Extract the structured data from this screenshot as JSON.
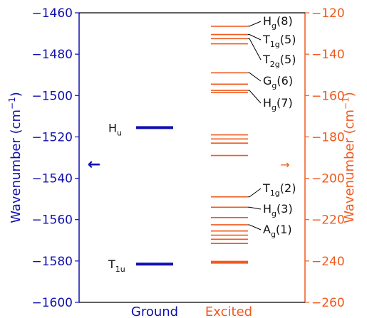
{
  "chart_data": {
    "type": "level-diagram",
    "xlabels": [
      "Ground",
      "Excited"
    ],
    "left_axis": {
      "label_main": "Wavenumber (cm",
      "label_sup": "−1",
      "label_close": ")",
      "ylim": [
        -1600,
        -1460
      ],
      "ticks": [
        -1460,
        -1480,
        -1500,
        -1520,
        -1540,
        -1560,
        -1580,
        -1600
      ],
      "color": "#1010b0"
    },
    "right_axis": {
      "label_main": "Wavenumber (cm",
      "label_sup": "−1",
      "label_close": ")",
      "ylim": [
        -260,
        -120
      ],
      "ticks": [
        -120,
        -140,
        -160,
        -180,
        -200,
        -220,
        -240,
        -260
      ],
      "color": "#f05a1e"
    },
    "ground_levels": [
      {
        "value": -1515.5,
        "label": "H",
        "sub": "u"
      },
      {
        "value": -1581.5,
        "label": "T",
        "sub": "1u"
      }
    ],
    "excited_levels": [
      -126.5,
      -130.5,
      -132.5,
      -135,
      -149,
      -154.5,
      -157.5,
      -158.5,
      -179,
      -181,
      -183,
      -189,
      -209,
      -214,
      -219,
      -222.5,
      -225.5,
      -227.5,
      -229.5,
      -231.5,
      -240.5,
      -240.2,
      -241
    ],
    "excited_annotations": [
      {
        "base": "H",
        "sub": "g",
        "count": "(8)",
        "level": -126.5
      },
      {
        "base": "T",
        "sub": "1g",
        "count": "(5)",
        "level": -130.5
      },
      {
        "base": "T",
        "sub": "2g",
        "count": "(5)",
        "level": -132.5
      },
      {
        "base": "G",
        "sub": "g",
        "count": "(6)",
        "level": -149
      },
      {
        "base": "H",
        "sub": "g",
        "count": "(7)",
        "level": -157.5
      },
      {
        "base": "T",
        "sub": "1g",
        "count": "(2)",
        "level": -209
      },
      {
        "base": "H",
        "sub": "g",
        "count": "(3)",
        "level": -214
      },
      {
        "base": "A",
        "sub": "g",
        "count": "(1)",
        "level": -222.5
      }
    ],
    "arrow_left_symbol": "←",
    "arrow_right_symbol": "→"
  }
}
